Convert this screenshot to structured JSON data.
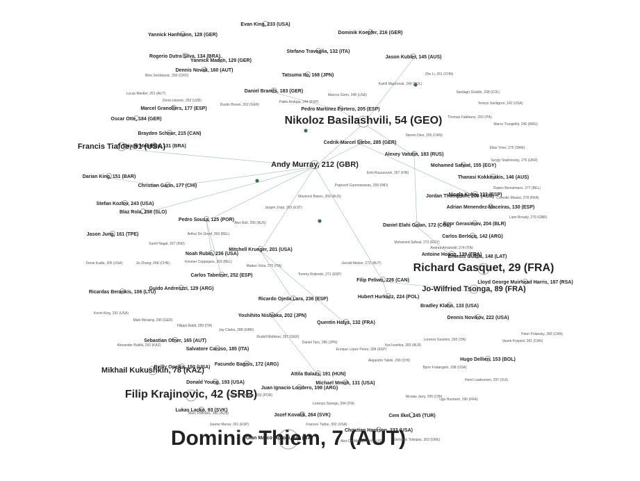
{
  "graph": {
    "nodes": [
      {
        "id": "thiem",
        "label": "Dominic Thiem, 7 (AUT)",
        "size": "huge"
      },
      {
        "id": "gasquet",
        "label": "Richard Gasquet, 29 (FRA)",
        "size": "big"
      },
      {
        "id": "krajinovic",
        "label": "Filip Krajinovic, 42 (SRB)",
        "size": "big"
      },
      {
        "id": "basilashvili",
        "label": "Nikoloz Basilashvili, 54 (GEO)",
        "size": "big"
      },
      {
        "id": "tiafoe",
        "label": "Francis Tiafoe, 51 (USA)",
        "size": "med"
      },
      {
        "id": "tsonga",
        "label": "Jo-Wilfried Tsonga, 89 (FRA)",
        "size": "med"
      },
      {
        "id": "murray",
        "label": "Andy Murray, 212 (GBR)",
        "size": "med"
      },
      {
        "id": "kukushkin",
        "label": "Mikhail Kukushkin, 78 (KAZ)",
        "size": "med"
      },
      {
        "id": "sousa",
        "label": "Pedro Sousa, 125 (POR)",
        "size": "small"
      },
      {
        "id": "lacko",
        "label": "Lukas Lacko, 93 (SVK)",
        "size": "small"
      },
      {
        "id": "berankis",
        "label": "Ricardas Berankis, 106 (LTU)",
        "size": "small"
      },
      {
        "id": "menendez",
        "label": "Adrian Menendez-Maceiras, 130 (ESP)",
        "size": "small"
      },
      {
        "id": "kuhn",
        "label": "Nicola Kuhn, 133 (ESP)",
        "size": "small"
      },
      {
        "id": "berlocq",
        "label": "Carlos Berlocq, 142 (ARG)",
        "size": "small"
      },
      {
        "id": "kubler",
        "label": "Jason Kubler, 145 (AUS)",
        "size": "small"
      },
      {
        "id": "galan",
        "label": "Daniel Elahi Galan, 172 (COL)",
        "size": "small"
      },
      {
        "id": "baldi",
        "label": "Hugo Dellien, 153 (BOL)",
        "size": "small"
      },
      {
        "id": "hoang",
        "label": "Antoine Hoang, 139 (FRA)",
        "size": "small"
      },
      {
        "id": "young",
        "label": "Donald Young, 193 (USA)",
        "size": "small"
      },
      {
        "id": "hanfmann",
        "label": "Yannick Hanfmann, 128 (GER)",
        "size": "small"
      },
      {
        "id": "travaglia",
        "label": "Stefano Travaglia, 132 (ITA)",
        "size": "small"
      },
      {
        "id": "maden",
        "label": "Yannick Maden, 129 (GER)",
        "size": "small"
      },
      {
        "id": "dutra",
        "label": "Rogerio Dutra Silva, 134 (BRA)",
        "size": "small"
      },
      {
        "id": "novak",
        "label": "Dennis Novak, 160 (AUT)",
        "size": "small"
      },
      {
        "id": "ofner",
        "label": "Sebastian Ofner, 165 (AUT)",
        "size": "small"
      },
      {
        "id": "caruso",
        "label": "Salvatore Caruso, 185 (ITA)",
        "size": "small"
      },
      {
        "id": "halys",
        "label": "Quentin Halys, 132 (FRA)",
        "size": "small"
      },
      {
        "id": "gulbis",
        "label": "Ernests Gulbis, 148 (LAT)",
        "size": "small"
      },
      {
        "id": "vatutin",
        "label": "Alexey Vatutin, 183 (RUS)",
        "size": "small"
      },
      {
        "id": "safwat",
        "label": "Mohamed Safwat, 155 (EGY)",
        "size": "small"
      },
      {
        "id": "kokkinakis",
        "label": "Thanasi Kokkinakis, 146 (AUS)",
        "size": "small"
      },
      {
        "id": "stebe",
        "label": "Cedrik-Marcel Stebe, 285 (GER)",
        "size": "small"
      },
      {
        "id": "bangoura",
        "label": "Christian Garin, 177 (CHI)",
        "size": "small"
      },
      {
        "id": "ollie",
        "label": "Oscar Otte, 184 (GER)",
        "size": "small"
      },
      {
        "id": "king",
        "label": "Darian King, 151 (BAR)",
        "size": "small"
      },
      {
        "id": "sutter",
        "label": "Stefan Kozlov, 243 (USA)",
        "size": "small"
      },
      {
        "id": "jung",
        "label": "Jason Jung, 161 (TPE)",
        "size": "small"
      },
      {
        "id": "tabernar",
        "label": "Carlos Taberner, 252 (ESP)",
        "size": "small"
      },
      {
        "id": "andreozzi",
        "label": "Guido Andreozzi, 129 (ARG)",
        "size": "small"
      },
      {
        "id": "ojeda",
        "label": "Ricardo Ojeda Lara, 236 (ESP)",
        "size": "small"
      },
      {
        "id": "nishioka",
        "label": "Yoshihito Nishioka, 202 (JPN)",
        "size": "small"
      },
      {
        "id": "bagnis",
        "label": "Facundo Bagnis, 172 (ARG)",
        "size": "small"
      },
      {
        "id": "opelka",
        "label": "Reilly Opelka, 150 (USA)",
        "size": "small"
      },
      {
        "id": "balazs",
        "label": "Attila Balazs, 191 (HUN)",
        "size": "small"
      },
      {
        "id": "mmoh",
        "label": "Michael Mmoh, 131 (USA)",
        "size": "small"
      },
      {
        "id": "londero",
        "label": "Juan Ignacio Londero, 198 (ARG)",
        "size": "small"
      },
      {
        "id": "kovalik",
        "label": "Jozef Kovalik, 264 (SVK)",
        "size": "small"
      },
      {
        "id": "klahn",
        "label": "Bradley Klahn, 133 (USA)",
        "size": "small"
      },
      {
        "id": "gerasimov",
        "label": "Egor Gerasimov, 204 (BLR)",
        "size": "small"
      },
      {
        "id": "viera",
        "label": "Lloyd George Muirhead Harris, 187 (RSA)",
        "size": "small"
      },
      {
        "id": "dlab",
        "label": "Dennis Novikov, 222 (USA)",
        "size": "small"
      },
      {
        "id": "ramos",
        "label": "Pedro Martinez Portero, 205 (ESP)",
        "size": "small"
      },
      {
        "id": "bran",
        "label": "Daniel Brands, 183 (GER)",
        "size": "small"
      },
      {
        "id": "matsui",
        "label": "Tatsuma Ito, 168 (JPN)",
        "size": "small"
      },
      {
        "id": "seppi",
        "label": "Evan King, 233 (USA)",
        "size": "small"
      },
      {
        "id": "koepfer",
        "label": "Dominik Koepfer, 216 (GER)",
        "size": "small"
      },
      {
        "id": "rosol",
        "label": "Brayden Schnur, 215 (CAN)",
        "size": "small"
      },
      {
        "id": "monteiro",
        "label": "Thiago Monteiro, 131 (BRA)",
        "size": "small"
      },
      {
        "id": "rola",
        "label": "Blaz Rola, 258 (SLO)",
        "size": "small"
      },
      {
        "id": "rubin",
        "label": "Noah Rubin, 236 (USA)",
        "size": "small"
      },
      {
        "id": "mwilson",
        "label": "Marcel Granollers, 177 (ESP)",
        "size": "small"
      },
      {
        "id": "nkrueger",
        "label": "Mitchell Krueger, 201 (USA)",
        "size": "small"
      },
      {
        "id": "donski",
        "label": "Hubert Hurkacz, 224 (POL)",
        "size": "small"
      },
      {
        "id": "skugor",
        "label": "Filip Peliwo, 226 (CAN)",
        "size": "small"
      },
      {
        "id": "rpoppel",
        "label": "Christian Harrison, 233 (USA)",
        "size": "small"
      },
      {
        "id": "thompson",
        "label": "Jordan Thompson, 208 (AUS)",
        "size": "small"
      },
      {
        "id": "pucinelli",
        "label": "Gian Marco Moroni, 240 (ITA)",
        "size": "small"
      },
      {
        "id": "schwar",
        "label": "Cem Ilkel, 245 (TUR)",
        "size": "small"
      }
    ],
    "tiny_labels": [
      "Nino Serdarusic, 256 (CRO)",
      "Lucas Miedler, 251 (AUT)",
      "Denis Istomin, 253 (UZB)",
      "Dustin Brown, 262 (GER)",
      "Pablo Andujar, 244 (ESP)",
      "Marcos Giron, 248 (USA)",
      "Kamil Majchrzak, 249 (POL)",
      "Zhe Li, 261 (CHN)",
      "Santiago Giraldo, 238 (COL)",
      "Tennys Sandgren, 242 (USA)",
      "Marco Trungelliti, 246 (ARG)",
      "Thomas Fabbiano, 250 (ITA)",
      "Steven Diez, 255 (CAN)",
      "Emil Ruusuvuori, 257 (FIN)",
      "Prajnesh Gunneswaran, 259 (IND)",
      "Maverick Banes, 260 (AUS)",
      "Jurgen Zopp, 263 (EST)",
      "Alex Bolt, 265 (AUS)",
      "Arthur De Greef, 266 (BEL)",
      "Sumit Nagal, 267 (IND)",
      "Ze Zhang, 268 (CHN)",
      "Kimmer Coppejans, 269 (BEL)",
      "Matteo Viola, 270 (ITA)",
      "Tommy Robredo, 271 (ESP)",
      "Gerald Melzer, 272 (AUT)",
      "Mohamed Safwat, 273 (EGY)",
      "Andrea Arnaboldi, 274 (ITA)",
      "Elias Ymer, 275 (SWE)",
      "Sergiy Stakhovsky, 276 (UKR)",
      "Ruben Bemelmans, 277 (BEL)",
      "Corentin Moutet, 278 (FRA)",
      "Liam Broady, 279 (GBR)",
      "Peter Polansky, 280 (CAN)",
      "Vasek Pospisil, 281 (CAN)",
      "Lorenzo Giustino, 282 (ITA)",
      "Ilya Ivashka, 283 (BLR)",
      "Enrique Lopez Perez, 284 (ESP)",
      "Daniel Taro, 286 (JPN)",
      "Rudolf Molleker, 287 (GER)",
      "Jay Clarke, 288 (GBR)",
      "Filippo Baldi, 289 (ITA)",
      "Mats Moraing, 290 (GER)",
      "Kevin King, 291 (USA)",
      "Alexander Bublik, 292 (KAZ)",
      "Joao Domingues, 293 (POR)",
      "Lorenzo Sonego, 294 (ITA)",
      "Nicolas Jarry, 295 (CHI)",
      "Ugo Humbert, 296 (FRA)",
      "Henri Laaksonen, 297 (SUI)",
      "Bjorn Fratangelo, 298 (USA)",
      "Alejandro Tabilo, 299 (CHI)",
      "Marc Polmans, 300 (AUS)",
      "Jaume Munar, 301 (ESP)",
      "Frances Tiafoe, 302 (USA)",
      "Stefanos Tsitsipas, 303 (GRE)",
      "Alex De Minaur, 304 (AUS)",
      "Denis Kudla, 305 (USA)"
    ]
  }
}
